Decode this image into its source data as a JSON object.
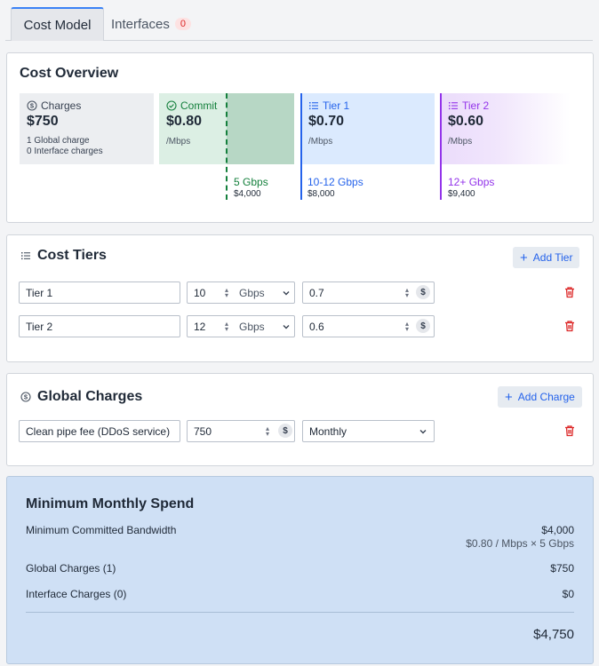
{
  "tabs": [
    {
      "label": "Cost Model"
    },
    {
      "label": "Interfaces",
      "badge": "0"
    }
  ],
  "overview": {
    "title": "Cost Overview",
    "charges": {
      "name": "Charges",
      "price": "$750",
      "sub1": "1 Global charge",
      "sub2": "0 Interface charges"
    },
    "commit": {
      "name": "Commit",
      "price": "$0.80",
      "unit": "/Mbps",
      "range": "5 Gbps",
      "amount": "$4,000"
    },
    "tier1": {
      "name": "Tier 1",
      "price": "$0.70",
      "unit": "/Mbps",
      "range": "10-12 Gbps",
      "amount": "$8,000"
    },
    "tier2": {
      "name": "Tier 2",
      "price": "$0.60",
      "unit": "/Mbps",
      "range": "12+ Gbps",
      "amount": "$9,400"
    }
  },
  "cost_tiers": {
    "title": "Cost Tiers",
    "add_label": "Add Tier",
    "rows": [
      {
        "name": "Tier 1",
        "qty": "10",
        "unit": "Gbps",
        "price": "0.7"
      },
      {
        "name": "Tier 2",
        "qty": "12",
        "unit": "Gbps",
        "price": "0.6"
      }
    ]
  },
  "global_charges": {
    "title": "Global Charges",
    "add_label": "Add Charge",
    "rows": [
      {
        "name": "Clean pipe fee (DDoS service)",
        "amount": "750",
        "period": "Monthly"
      }
    ]
  },
  "summary": {
    "title": "Minimum Monthly Spend",
    "rows": [
      {
        "label": "Minimum Committed Bandwidth",
        "value": "$4,000",
        "sub": "$0.80 / Mbps × 5 Gbps"
      },
      {
        "label": "Global Charges (1)",
        "value": "$750"
      },
      {
        "label": "Interface Charges (0)",
        "value": "$0"
      }
    ],
    "total": "$4,750"
  },
  "colors": {
    "accent": "#3b82f6",
    "commit": "#15803d",
    "tier1": "#2563eb",
    "tier2": "#9333ea",
    "danger": "#dc2626"
  }
}
